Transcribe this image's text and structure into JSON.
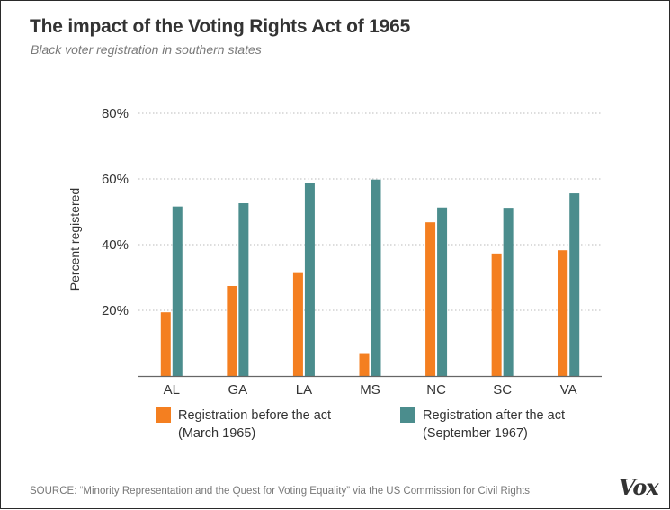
{
  "header": {
    "title": "The impact of the Voting Rights Act of 1965",
    "subtitle": "Black voter registration in southern states"
  },
  "colors": {
    "before": "#f47f20",
    "after": "#4b8d8d",
    "grid": "#bbbbbb",
    "axis": "#666666",
    "text": "#333333"
  },
  "chart_data": {
    "type": "bar",
    "categories": [
      "AL",
      "GA",
      "LA",
      "MS",
      "NC",
      "SC",
      "VA"
    ],
    "series": [
      {
        "name": "Registration before the act (March 1965)",
        "values": [
          19.4,
          27.4,
          31.6,
          6.7,
          46.8,
          37.3,
          38.3
        ]
      },
      {
        "name": "Registration after the act (September 1967)",
        "values": [
          51.6,
          52.6,
          58.9,
          59.8,
          51.3,
          51.2,
          55.6
        ]
      }
    ],
    "ylabel": "Percent registered",
    "ylim": [
      0,
      80
    ],
    "yticks": [
      20,
      40,
      60,
      80
    ],
    "ytick_labels": [
      "20%",
      "40%",
      "60%",
      "80%"
    ],
    "grid": true,
    "legend_position": "bottom"
  },
  "legend": {
    "before": {
      "line1": "Registration before the act",
      "line2": "(March 1965)"
    },
    "after": {
      "line1": "Registration after the act",
      "line2": "(September 1967)"
    }
  },
  "footer": {
    "source": "SOURCE: “Minority Representation and the Quest for Voting Equality” via the US Commission for Civil Rights",
    "logo": "Vox"
  }
}
